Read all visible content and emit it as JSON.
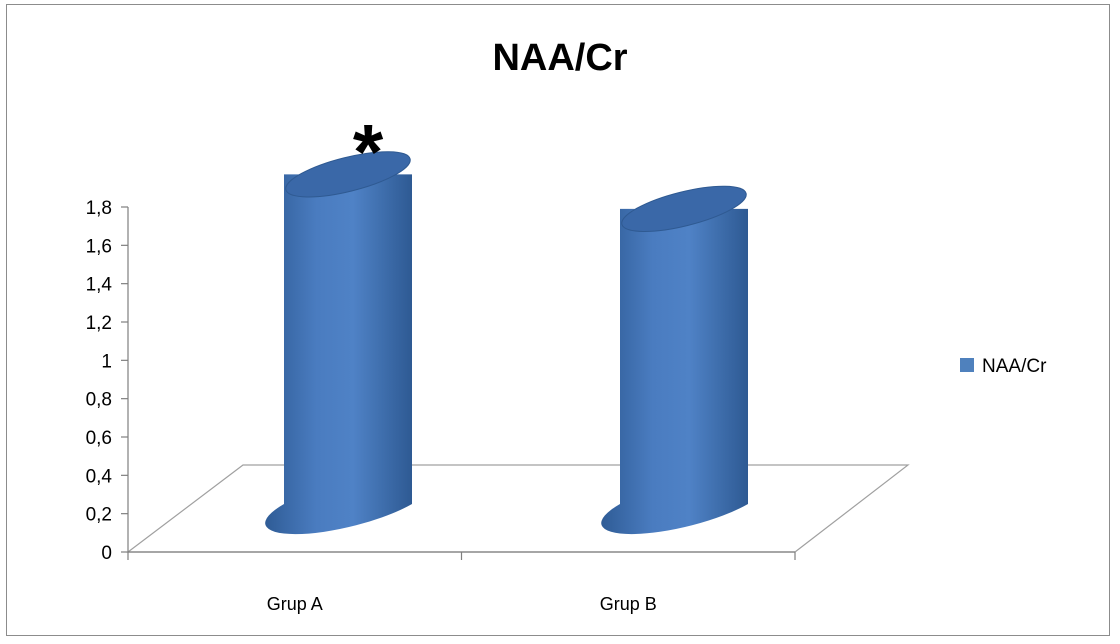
{
  "chart_data": {
    "type": "bar",
    "title": "NAA/Cr",
    "categories": [
      "Grup A",
      "Grup B"
    ],
    "series": [
      {
        "name": "NAA/Cr",
        "values": [
          1.72,
          1.54
        ],
        "color": "#4F81BD"
      }
    ],
    "ylim": [
      0,
      1.8
    ],
    "yticks": [
      "0",
      "0,2",
      "0,4",
      "0,6",
      "0,8",
      "1",
      "1,2",
      "1,4",
      "1,6",
      "1,8"
    ],
    "xlabel": "",
    "ylabel": "",
    "legend_placement": "right",
    "grid": false,
    "three_d": true,
    "annotations": [
      {
        "text": "*",
        "category": "Grup A"
      }
    ]
  }
}
